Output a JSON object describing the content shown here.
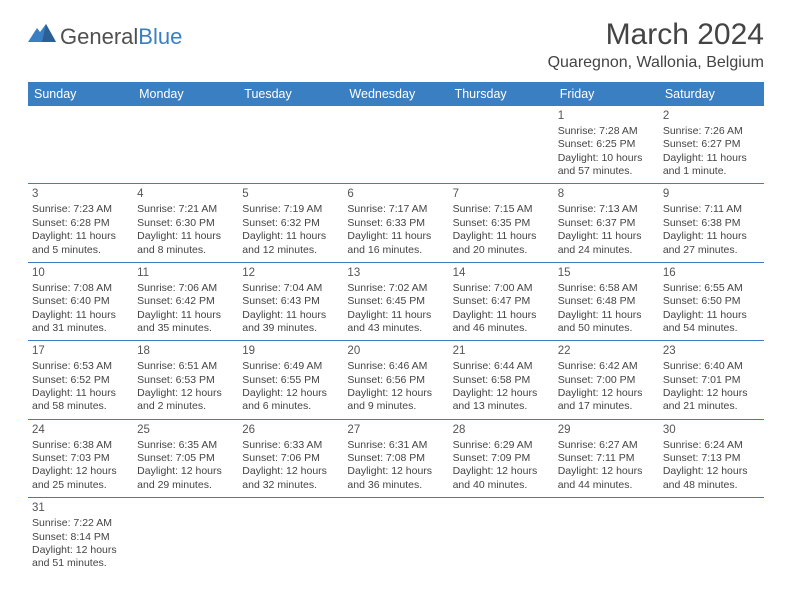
{
  "logo": {
    "general": "General",
    "blue": "Blue"
  },
  "title": "March 2024",
  "location": "Quaregnon, Wallonia, Belgium",
  "colors": {
    "header_bg": "#3a7fc2",
    "header_fg": "#ffffff",
    "border": "#3a7fc2",
    "text": "#444444",
    "bg": "#ffffff"
  },
  "weekdays": [
    "Sunday",
    "Monday",
    "Tuesday",
    "Wednesday",
    "Thursday",
    "Friday",
    "Saturday"
  ],
  "first_weekday_index": 5,
  "days": [
    {
      "n": 1,
      "sr": "7:28 AM",
      "ss": "6:25 PM",
      "dl": "10 hours and 57 minutes."
    },
    {
      "n": 2,
      "sr": "7:26 AM",
      "ss": "6:27 PM",
      "dl": "11 hours and 1 minute."
    },
    {
      "n": 3,
      "sr": "7:23 AM",
      "ss": "6:28 PM",
      "dl": "11 hours and 5 minutes."
    },
    {
      "n": 4,
      "sr": "7:21 AM",
      "ss": "6:30 PM",
      "dl": "11 hours and 8 minutes."
    },
    {
      "n": 5,
      "sr": "7:19 AM",
      "ss": "6:32 PM",
      "dl": "11 hours and 12 minutes."
    },
    {
      "n": 6,
      "sr": "7:17 AM",
      "ss": "6:33 PM",
      "dl": "11 hours and 16 minutes."
    },
    {
      "n": 7,
      "sr": "7:15 AM",
      "ss": "6:35 PM",
      "dl": "11 hours and 20 minutes."
    },
    {
      "n": 8,
      "sr": "7:13 AM",
      "ss": "6:37 PM",
      "dl": "11 hours and 24 minutes."
    },
    {
      "n": 9,
      "sr": "7:11 AM",
      "ss": "6:38 PM",
      "dl": "11 hours and 27 minutes."
    },
    {
      "n": 10,
      "sr": "7:08 AM",
      "ss": "6:40 PM",
      "dl": "11 hours and 31 minutes."
    },
    {
      "n": 11,
      "sr": "7:06 AM",
      "ss": "6:42 PM",
      "dl": "11 hours and 35 minutes."
    },
    {
      "n": 12,
      "sr": "7:04 AM",
      "ss": "6:43 PM",
      "dl": "11 hours and 39 minutes."
    },
    {
      "n": 13,
      "sr": "7:02 AM",
      "ss": "6:45 PM",
      "dl": "11 hours and 43 minutes."
    },
    {
      "n": 14,
      "sr": "7:00 AM",
      "ss": "6:47 PM",
      "dl": "11 hours and 46 minutes."
    },
    {
      "n": 15,
      "sr": "6:58 AM",
      "ss": "6:48 PM",
      "dl": "11 hours and 50 minutes."
    },
    {
      "n": 16,
      "sr": "6:55 AM",
      "ss": "6:50 PM",
      "dl": "11 hours and 54 minutes."
    },
    {
      "n": 17,
      "sr": "6:53 AM",
      "ss": "6:52 PM",
      "dl": "11 hours and 58 minutes."
    },
    {
      "n": 18,
      "sr": "6:51 AM",
      "ss": "6:53 PM",
      "dl": "12 hours and 2 minutes."
    },
    {
      "n": 19,
      "sr": "6:49 AM",
      "ss": "6:55 PM",
      "dl": "12 hours and 6 minutes."
    },
    {
      "n": 20,
      "sr": "6:46 AM",
      "ss": "6:56 PM",
      "dl": "12 hours and 9 minutes."
    },
    {
      "n": 21,
      "sr": "6:44 AM",
      "ss": "6:58 PM",
      "dl": "12 hours and 13 minutes."
    },
    {
      "n": 22,
      "sr": "6:42 AM",
      "ss": "7:00 PM",
      "dl": "12 hours and 17 minutes."
    },
    {
      "n": 23,
      "sr": "6:40 AM",
      "ss": "7:01 PM",
      "dl": "12 hours and 21 minutes."
    },
    {
      "n": 24,
      "sr": "6:38 AM",
      "ss": "7:03 PM",
      "dl": "12 hours and 25 minutes."
    },
    {
      "n": 25,
      "sr": "6:35 AM",
      "ss": "7:05 PM",
      "dl": "12 hours and 29 minutes."
    },
    {
      "n": 26,
      "sr": "6:33 AM",
      "ss": "7:06 PM",
      "dl": "12 hours and 32 minutes."
    },
    {
      "n": 27,
      "sr": "6:31 AM",
      "ss": "7:08 PM",
      "dl": "12 hours and 36 minutes."
    },
    {
      "n": 28,
      "sr": "6:29 AM",
      "ss": "7:09 PM",
      "dl": "12 hours and 40 minutes."
    },
    {
      "n": 29,
      "sr": "6:27 AM",
      "ss": "7:11 PM",
      "dl": "12 hours and 44 minutes."
    },
    {
      "n": 30,
      "sr": "6:24 AM",
      "ss": "7:13 PM",
      "dl": "12 hours and 48 minutes."
    },
    {
      "n": 31,
      "sr": "7:22 AM",
      "ss": "8:14 PM",
      "dl": "12 hours and 51 minutes."
    }
  ],
  "labels": {
    "sunrise": "Sunrise: ",
    "sunset": "Sunset: ",
    "daylight": "Daylight: "
  }
}
